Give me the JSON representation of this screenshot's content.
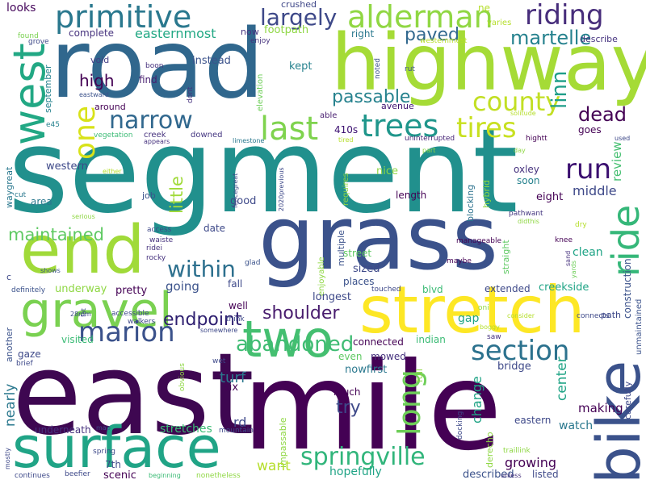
{
  "words": [
    {
      "text": "segment",
      "color": "#21908d"
    },
    {
      "text": "mile",
      "color": "#440154"
    },
    {
      "text": "east",
      "color": "#3e0751"
    },
    {
      "text": "road",
      "color": "#30678d"
    },
    {
      "text": "highway",
      "color": "#a5db36"
    },
    {
      "text": "grass",
      "color": "#3b528b"
    },
    {
      "text": "surface",
      "color": "#20a486"
    },
    {
      "text": "stretch",
      "color": "#fde725"
    },
    {
      "text": "end",
      "color": "#a0da39"
    },
    {
      "text": "gravel",
      "color": "#7ad151"
    },
    {
      "text": "bike",
      "color": "#3b528b"
    },
    {
      "text": "west",
      "color": "#22a884"
    },
    {
      "text": "two",
      "color": "#44bf70"
    },
    {
      "text": "primitive",
      "color": "#2a788e"
    },
    {
      "text": "alderman",
      "color": "#90d743"
    },
    {
      "text": "riding",
      "color": "#472d7b"
    },
    {
      "text": "marion",
      "color": "#3b528b"
    },
    {
      "text": "section",
      "color": "#2c728e"
    },
    {
      "text": "springville",
      "color": "#31b57b"
    },
    {
      "text": "narrow",
      "color": "#31688e"
    },
    {
      "text": "last",
      "color": "#7fd34e"
    },
    {
      "text": "trees",
      "color": "#1f968b"
    },
    {
      "text": "tires",
      "color": "#c8e020"
    },
    {
      "text": "county",
      "color": "#c2df23"
    },
    {
      "text": "one",
      "color": "#d8e219"
    },
    {
      "text": "long",
      "color": "#6ece58"
    },
    {
      "text": "ride",
      "color": "#35b779"
    },
    {
      "text": "run",
      "color": "#3b0f70"
    },
    {
      "text": "dead",
      "color": "#440154"
    },
    {
      "text": "within",
      "color": "#2d708e"
    },
    {
      "text": "abandoned",
      "color": "#3fbc73"
    },
    {
      "text": "endpoint",
      "color": "#2d1e6f"
    },
    {
      "text": "shoulder",
      "color": "#481c6e"
    },
    {
      "text": "maintained",
      "color": "#5ec962"
    },
    {
      "text": "paved",
      "color": "#31688e"
    },
    {
      "text": "largely",
      "color": "#3e4989"
    },
    {
      "text": "martelle",
      "color": "#26828e"
    },
    {
      "text": "passable",
      "color": "#26828e"
    },
    {
      "text": "high",
      "color": "#440154"
    },
    {
      "text": "easternmost",
      "color": "#22a884"
    },
    {
      "text": "footpath",
      "color": "#8fd744"
    },
    {
      "text": "complete",
      "color": "#46327e"
    },
    {
      "text": "looks",
      "color": "#46085c"
    },
    {
      "text": "crushed",
      "color": "#3f4788"
    },
    {
      "text": "right",
      "color": "#2a788e"
    },
    {
      "text": "ne",
      "color": "#b5de2b"
    },
    {
      "text": "varies",
      "color": "#b5de2b"
    },
    {
      "text": "westernmost",
      "color": "#b8de29"
    },
    {
      "text": "found",
      "color": "#7ad151"
    },
    {
      "text": "enjoy",
      "color": "#46327e"
    },
    {
      "text": "now",
      "color": "#46337f"
    },
    {
      "text": "grove",
      "color": "#3e4989"
    },
    {
      "text": "describe",
      "color": "#46337f"
    },
    {
      "text": "linn",
      "color": "#1f9e89"
    },
    {
      "text": "september",
      "color": "#26828e"
    },
    {
      "text": "void",
      "color": "#433e85"
    },
    {
      "text": "boon",
      "color": "#46327e"
    },
    {
      "text": "instead",
      "color": "#3b528b"
    },
    {
      "text": "kept",
      "color": "#26828e"
    },
    {
      "text": "noted",
      "color": "#3b528b"
    },
    {
      "text": "rut",
      "color": "#3b528b"
    },
    {
      "text": "around",
      "color": "#440154"
    },
    {
      "text": "eastward",
      "color": "#3b528b"
    },
    {
      "text": "find",
      "color": "#481f70"
    },
    {
      "text": "dont",
      "color": "#46327e"
    },
    {
      "text": "elevation",
      "color": "#6ece58"
    },
    {
      "text": "avenue",
      "color": "#3b0f70"
    },
    {
      "text": "able",
      "color": "#481f70"
    },
    {
      "text": "410s",
      "color": "#3b0f70"
    },
    {
      "text": "e45",
      "color": "#26828e"
    },
    {
      "text": "vegetation",
      "color": "#3bbb75"
    },
    {
      "text": "creek",
      "color": "#46327e"
    },
    {
      "text": "downed",
      "color": "#453781"
    },
    {
      "text": "limestone",
      "color": "#2a788e"
    },
    {
      "text": "tired",
      "color": "#b5de2b"
    },
    {
      "text": "solitude",
      "color": "#b5de2b"
    },
    {
      "text": "appears",
      "color": "#46327e"
    },
    {
      "text": "uninterrupted",
      "color": "#482677"
    },
    {
      "text": "goes",
      "color": "#440154"
    },
    {
      "text": "used",
      "color": "#3e4989"
    },
    {
      "text": "hightt",
      "color": "#440154"
    },
    {
      "text": "review",
      "color": "#44bf70"
    },
    {
      "text": "day",
      "color": "#8fd744"
    },
    {
      "text": "part",
      "color": "#8fd744"
    },
    {
      "text": "western",
      "color": "#3e4989"
    },
    {
      "text": "either",
      "color": "#b5de2b"
    },
    {
      "text": "little",
      "color": "#a0da39"
    },
    {
      "text": "fencegreat",
      "color": "#3e4989"
    },
    {
      "text": "2020previous",
      "color": "#3e4989"
    },
    {
      "text": "requires",
      "color": "#8fd744"
    },
    {
      "text": "nice",
      "color": "#8fd744"
    },
    {
      "text": "blocking",
      "color": "#2c728e"
    },
    {
      "text": "hybrid",
      "color": "#8fd744"
    },
    {
      "text": "soon",
      "color": "#26828e"
    },
    {
      "text": "oxley",
      "color": "#46327e"
    },
    {
      "text": "middle",
      "color": "#3e4989"
    },
    {
      "text": "eight",
      "color": "#440154"
    },
    {
      "text": "waygreat",
      "color": "#2a788e"
    },
    {
      "text": "cut",
      "color": "#2a788e"
    },
    {
      "text": "area",
      "color": "#2a788e"
    },
    {
      "text": "job",
      "color": "#3b528b"
    },
    {
      "text": "good",
      "color": "#3e4989"
    },
    {
      "text": "length",
      "color": "#440154"
    },
    {
      "text": "serious",
      "color": "#8fd744"
    },
    {
      "text": "pathwant",
      "color": "#453781"
    },
    {
      "text": "didthis",
      "color": "#8fd744"
    },
    {
      "text": "dry",
      "color": "#b5de2b"
    },
    {
      "text": "date",
      "color": "#3e4989"
    },
    {
      "text": "access",
      "color": "#3e4989"
    },
    {
      "text": "waiste",
      "color": "#46327e"
    },
    {
      "text": "ridei",
      "color": "#46327e"
    },
    {
      "text": "rocky",
      "color": "#46327e"
    },
    {
      "text": "multiple",
      "color": "#3b528b"
    },
    {
      "text": "manageable",
      "color": "#440154"
    },
    {
      "text": "knee",
      "color": "#440154"
    },
    {
      "text": "clean",
      "color": "#20a486"
    },
    {
      "text": "street",
      "color": "#5ec962"
    },
    {
      "text": "straight",
      "color": "#5ec962"
    },
    {
      "text": "sand",
      "color": "#46327e"
    },
    {
      "text": "yards",
      "color": "#6ece58"
    },
    {
      "text": "shows",
      "color": "#3b528b"
    },
    {
      "text": "glad",
      "color": "#3b528b"
    },
    {
      "text": "sized",
      "color": "#3e4989"
    },
    {
      "text": "maybe",
      "color": "#440154"
    },
    {
      "text": "construction",
      "color": "#3b528b"
    },
    {
      "text": "c",
      "color": "#3e4989"
    },
    {
      "text": "fall",
      "color": "#3e4989"
    },
    {
      "text": "enjoyable",
      "color": "#8fd744"
    },
    {
      "text": "places",
      "color": "#3b528b"
    },
    {
      "text": "unmaintained",
      "color": "#3b528b"
    },
    {
      "text": "definitely",
      "color": "#3b528b"
    },
    {
      "text": "underway",
      "color": "#8fd744"
    },
    {
      "text": "pretty",
      "color": "#440154"
    },
    {
      "text": "going",
      "color": "#3b528b"
    },
    {
      "text": "touched",
      "color": "#3e4989"
    },
    {
      "text": "blvd",
      "color": "#3bbb75"
    },
    {
      "text": "extended",
      "color": "#3e4989"
    },
    {
      "text": "creekside",
      "color": "#20a486"
    },
    {
      "text": "longest",
      "color": "#3e4989"
    },
    {
      "text": "oni",
      "color": "#8fd744"
    },
    {
      "text": "gap",
      "color": "#20a486"
    },
    {
      "text": "path",
      "color": "#3e4989"
    },
    {
      "text": "28mm",
      "color": "#3e4989"
    },
    {
      "text": "fat",
      "color": "#3e4989"
    },
    {
      "text": "well",
      "color": "#440154"
    },
    {
      "text": "think",
      "color": "#3e4989"
    },
    {
      "text": "boggy",
      "color": "#b5de2b"
    },
    {
      "text": "consider",
      "color": "#b5de2b"
    },
    {
      "text": "another",
      "color": "#3b528b"
    },
    {
      "text": "visited",
      "color": "#3bbb75"
    },
    {
      "text": "accessible",
      "color": "#3e4989"
    },
    {
      "text": "walkers",
      "color": "#3e4989"
    },
    {
      "text": "somewhere",
      "color": "#3e4989"
    },
    {
      "text": "indian",
      "color": "#3bbb75"
    },
    {
      "text": "saw",
      "color": "#46327e"
    },
    {
      "text": "connects",
      "color": "#3e4989"
    },
    {
      "text": "carefully",
      "color": "#3e4989"
    },
    {
      "text": "connected",
      "color": "#440154"
    },
    {
      "text": "gaze",
      "color": "#3e4989"
    },
    {
      "text": "brief",
      "color": "#3e4989"
    },
    {
      "text": "wet",
      "color": "#3e4989"
    },
    {
      "text": "obvious",
      "color": "#8fd744"
    },
    {
      "text": "six",
      "color": "#440154"
    },
    {
      "text": "even",
      "color": "#5ec962"
    },
    {
      "text": "mowed",
      "color": "#46327e"
    },
    {
      "text": "nowfirst",
      "color": "#2a788e"
    },
    {
      "text": "full",
      "color": "#8fd744"
    },
    {
      "text": "bridge",
      "color": "#3e4989"
    },
    {
      "text": "center",
      "color": "#20a486"
    },
    {
      "text": "nearly",
      "color": "#2a788e"
    },
    {
      "text": "turf",
      "color": "#2a788e"
    },
    {
      "text": "rd",
      "color": "#3e4989"
    },
    {
      "text": "try",
      "color": "#3e4989"
    },
    {
      "text": "much",
      "color": "#440154"
    },
    {
      "text": "change",
      "color": "#20a486"
    },
    {
      "text": "making",
      "color": "#440154"
    },
    {
      "text": "watch",
      "color": "#2a788e"
    },
    {
      "text": "eastern",
      "color": "#3e4989"
    },
    {
      "text": "underneath",
      "color": "#46327e"
    },
    {
      "text": "map",
      "color": "#3e4989"
    },
    {
      "text": "stretches",
      "color": "#3bbb75"
    },
    {
      "text": "mountain",
      "color": "#3e4989"
    },
    {
      "text": "impassable",
      "color": "#8fd744"
    },
    {
      "text": "docking",
      "color": "#3e4989"
    },
    {
      "text": "derecho",
      "color": "#8fd744"
    },
    {
      "text": "traillink",
      "color": "#8fd744"
    },
    {
      "text": "spring",
      "color": "#3e4989"
    },
    {
      "text": "7th",
      "color": "#3e4989"
    },
    {
      "text": "scenic",
      "color": "#440154"
    },
    {
      "text": "want",
      "color": "#b5de2b"
    },
    {
      "text": "hopefully",
      "color": "#20a486"
    },
    {
      "text": "described",
      "color": "#3b528b"
    },
    {
      "text": "growing",
      "color": "#440154"
    },
    {
      "text": "listed",
      "color": "#3e4989"
    },
    {
      "text": "unless",
      "color": "#46327e"
    },
    {
      "text": "beginning",
      "color": "#3bbb75"
    },
    {
      "text": "nonetheless",
      "color": "#8fd744"
    },
    {
      "text": "continues",
      "color": "#3e4989"
    },
    {
      "text": "beefier",
      "color": "#3e4989"
    },
    {
      "text": "mostly",
      "color": "#3e4989"
    }
  ]
}
